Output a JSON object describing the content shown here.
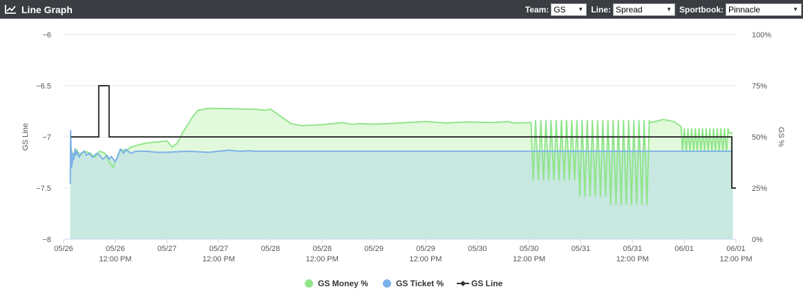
{
  "header": {
    "title": "Line Graph",
    "icon": "line-chart-icon",
    "team_label": "Team:",
    "team_value": "GS",
    "line_label": "Line:",
    "line_value": "Spread",
    "book_label": "Sportbook:",
    "book_value": "Pinnacle"
  },
  "colors": {
    "header_bg": "#3a3d42",
    "money": "#90e58a",
    "money_fill": "#e2f9dc",
    "ticket": "#7cb1ea",
    "ticket_fill": "#c9e8e1",
    "line": "#333333",
    "grid": "#e6e6e6"
  },
  "chart_data": {
    "type": "line",
    "title": "",
    "y_left": {
      "label": "GS Line",
      "min": -8,
      "max": -6,
      "ticks": [
        -6,
        -6.5,
        -7,
        -7.5,
        -8
      ],
      "tick_labels": [
        "−6",
        "−6.5",
        "−7",
        "−7.5",
        "−8"
      ]
    },
    "y_right": {
      "label": "GS %",
      "min": 0,
      "max": 100,
      "ticks": [
        100,
        75,
        50,
        25,
        0
      ],
      "tick_labels": [
        "100%",
        "75%",
        "50%",
        "25%",
        "0%"
      ]
    },
    "x_axis": {
      "min": 0,
      "max": 6.5,
      "unit": "days from 05/26 00:00",
      "ticks": [
        {
          "x": 0.0,
          "date": "05/26",
          "time": ""
        },
        {
          "x": 0.5,
          "date": "05/26",
          "time": "12:00 PM"
        },
        {
          "x": 1.0,
          "date": "05/27",
          "time": ""
        },
        {
          "x": 1.5,
          "date": "05/27",
          "time": "12:00 PM"
        },
        {
          "x": 2.0,
          "date": "05/28",
          "time": ""
        },
        {
          "x": 2.5,
          "date": "05/28",
          "time": "12:00 PM"
        },
        {
          "x": 3.0,
          "date": "05/29",
          "time": ""
        },
        {
          "x": 3.5,
          "date": "05/29",
          "time": "12:00 PM"
        },
        {
          "x": 4.0,
          "date": "05/30",
          "time": ""
        },
        {
          "x": 4.5,
          "date": "05/30",
          "time": "12:00 PM"
        },
        {
          "x": 5.0,
          "date": "05/31",
          "time": ""
        },
        {
          "x": 5.5,
          "date": "05/31",
          "time": "12:00 PM"
        },
        {
          "x": 6.0,
          "date": "06/01",
          "time": ""
        },
        {
          "x": 6.5,
          "date": "06/01",
          "time": "12:00 PM"
        }
      ]
    },
    "legend_position": "bottom-center",
    "series": [
      {
        "name": "GS Money %",
        "axis": "right",
        "type": "area",
        "points": [
          [
            0.07,
            45
          ],
          [
            0.09,
            40
          ],
          [
            0.12,
            44
          ],
          [
            0.16,
            41
          ],
          [
            0.2,
            43
          ],
          [
            0.26,
            42
          ],
          [
            0.3,
            40
          ],
          [
            0.35,
            43
          ],
          [
            0.4,
            42
          ],
          [
            0.45,
            37
          ],
          [
            0.48,
            35
          ],
          [
            0.5,
            38
          ],
          [
            0.55,
            44
          ],
          [
            0.6,
            43
          ],
          [
            0.65,
            45
          ],
          [
            0.72,
            46
          ],
          [
            0.8,
            47
          ],
          [
            0.9,
            47.5
          ],
          [
            1.0,
            48
          ],
          [
            1.05,
            45
          ],
          [
            1.1,
            47
          ],
          [
            1.15,
            52
          ],
          [
            1.25,
            60
          ],
          [
            1.3,
            63
          ],
          [
            1.4,
            64
          ],
          [
            1.6,
            63.8
          ],
          [
            1.85,
            63.5
          ],
          [
            1.95,
            63
          ],
          [
            2.0,
            63.6
          ],
          [
            2.1,
            60
          ],
          [
            2.2,
            56.5
          ],
          [
            2.3,
            55.5
          ],
          [
            2.5,
            56
          ],
          [
            2.7,
            57
          ],
          [
            2.8,
            56
          ],
          [
            2.85,
            56.5
          ],
          [
            3.0,
            56.2
          ],
          [
            3.2,
            56.7
          ],
          [
            3.5,
            57.5
          ],
          [
            3.7,
            56.8
          ],
          [
            3.9,
            57.3
          ],
          [
            4.15,
            57
          ],
          [
            4.3,
            57.5
          ],
          [
            4.35,
            56.8
          ],
          [
            4.52,
            57
          ]
        ],
        "oscillation_1": {
          "x_start": 4.52,
          "x_end": 5.67,
          "cycles": 23,
          "high": 58,
          "low_segments": [
            {
              "x_start": 4.52,
              "x_end": 4.98,
              "low": 29
            },
            {
              "x_start": 4.98,
              "x_end": 5.28,
              "low": 21
            },
            {
              "x_start": 5.28,
              "x_end": 5.67,
              "low": 17
            }
          ]
        },
        "points_mid": [
          [
            5.67,
            57
          ],
          [
            5.8,
            58.5
          ],
          [
            5.9,
            57.5
          ],
          [
            5.97,
            55
          ]
        ],
        "oscillation_2": {
          "x_start": 5.97,
          "x_end": 6.43,
          "cycles": 13,
          "high": 54,
          "low": 43
        },
        "points_end": [
          [
            6.43,
            52
          ],
          [
            6.47,
            52
          ]
        ]
      },
      {
        "name": "GS Ticket %",
        "axis": "right",
        "type": "area",
        "points": [
          [
            0.065,
            27
          ],
          [
            0.068,
            53
          ],
          [
            0.072,
            45
          ],
          [
            0.075,
            35
          ],
          [
            0.085,
            37
          ],
          [
            0.09,
            42
          ],
          [
            0.1,
            39
          ],
          [
            0.11,
            44
          ],
          [
            0.12,
            41
          ],
          [
            0.13,
            43
          ],
          [
            0.15,
            40
          ],
          [
            0.17,
            42
          ],
          [
            0.2,
            43
          ],
          [
            0.22,
            41
          ],
          [
            0.25,
            42
          ],
          [
            0.28,
            40
          ],
          [
            0.32,
            42
          ],
          [
            0.35,
            41
          ],
          [
            0.38,
            39
          ],
          [
            0.4,
            40
          ],
          [
            0.42,
            41
          ],
          [
            0.44,
            39
          ],
          [
            0.46,
            40.5
          ],
          [
            0.5,
            38
          ],
          [
            0.52,
            40
          ],
          [
            0.55,
            44
          ],
          [
            0.58,
            42
          ],
          [
            0.6,
            44
          ],
          [
            0.65,
            42
          ],
          [
            0.7,
            43
          ],
          [
            0.8,
            43
          ],
          [
            0.9,
            42.5
          ],
          [
            1.0,
            42.5
          ],
          [
            1.2,
            43
          ],
          [
            1.4,
            42.5
          ],
          [
            1.5,
            43
          ],
          [
            1.6,
            43.5
          ],
          [
            1.7,
            43
          ],
          [
            1.8,
            43.2
          ],
          [
            1.85,
            43
          ],
          [
            2.0,
            43
          ],
          [
            3.0,
            43
          ],
          [
            4.0,
            43
          ],
          [
            5.0,
            43
          ],
          [
            6.0,
            43
          ],
          [
            6.47,
            43
          ]
        ]
      },
      {
        "name": "GS Line",
        "axis": "left",
        "type": "step",
        "points": [
          [
            0.07,
            -7
          ],
          [
            0.34,
            -7
          ],
          [
            0.34,
            -6.5
          ],
          [
            0.44,
            -6.5
          ],
          [
            0.44,
            -7
          ],
          [
            6.46,
            -7
          ],
          [
            6.46,
            -7.5
          ],
          [
            6.5,
            -7.5
          ]
        ]
      }
    ]
  },
  "legend": {
    "items": [
      {
        "label": "GS Money %",
        "marker": "circle"
      },
      {
        "label": "GS Ticket %",
        "marker": "circle"
      },
      {
        "label": "GS Line",
        "marker": "line-diamond"
      }
    ]
  }
}
